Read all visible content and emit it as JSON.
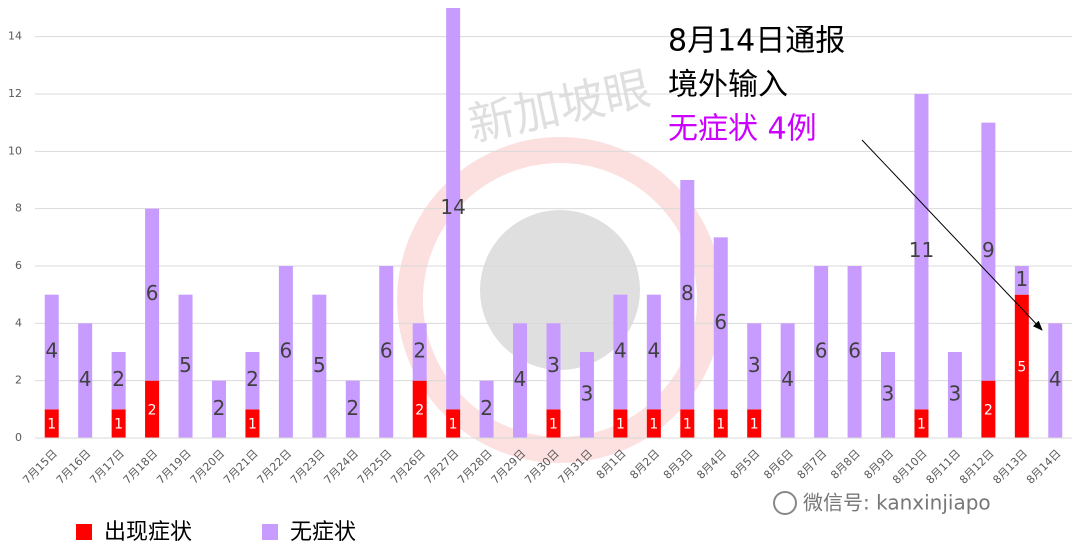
{
  "chart_data": {
    "type": "stacked-bar",
    "categories": [
      "7月15日",
      "7月16日",
      "7月17日",
      "7月18日",
      "7月19日",
      "7月20日",
      "7月21日",
      "7月22日",
      "7月23日",
      "7月24日",
      "7月25日",
      "7月26日",
      "7月27日",
      "7月28日",
      "7月29日",
      "7月30日",
      "7月31日",
      "8月1日",
      "8月2日",
      "8月3日",
      "8月4日",
      "8月5日",
      "8月6日",
      "8月7日",
      "8月8日",
      "8月9日",
      "8月10日",
      "8月11日",
      "8月12日",
      "8月13日",
      "8月14日"
    ],
    "series": [
      {
        "name": "出现症状",
        "color": "#ff0000",
        "values": [
          1,
          0,
          1,
          2,
          0,
          0,
          1,
          0,
          0,
          0,
          0,
          2,
          1,
          0,
          0,
          1,
          0,
          1,
          1,
          1,
          1,
          1,
          0,
          0,
          0,
          0,
          1,
          0,
          2,
          5,
          0
        ]
      },
      {
        "name": "无症状",
        "color": "#c89cff",
        "values": [
          4,
          4,
          2,
          6,
          5,
          2,
          2,
          6,
          5,
          2,
          6,
          2,
          14,
          2,
          4,
          3,
          3,
          4,
          4,
          8,
          6,
          3,
          4,
          6,
          6,
          3,
          11,
          3,
          9,
          1,
          4
        ]
      }
    ],
    "ylim": [
      0,
      15
    ],
    "yticks": [
      0,
      2,
      4,
      6,
      8,
      10,
      12,
      14
    ],
    "grid": true,
    "annotations": [
      "8月14日通报",
      "境外输入",
      "无症状 4例"
    ],
    "watermark": "新加坡眼",
    "source": "微信号: kanxinjiapo"
  }
}
